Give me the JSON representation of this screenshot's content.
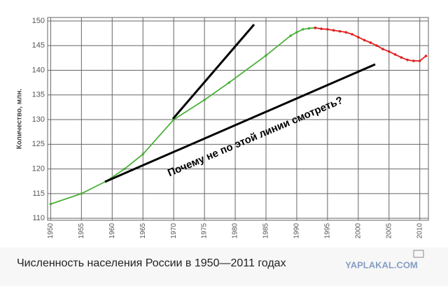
{
  "chart_data": {
    "type": "line",
    "y_label": "Количество, млн.",
    "annotation": "Почему не по этой линии смотреть?",
    "caption": "Численность населения России в 1950—2011 годах",
    "watermark": "YAPLAKAL.COM",
    "xlim": [
      1949.5,
      2011.4
    ],
    "ylim": [
      109.6,
      150.7
    ],
    "xticks": [
      1950,
      1955,
      1960,
      1965,
      1970,
      1975,
      1980,
      1985,
      1990,
      1995,
      2000,
      2005,
      2010
    ],
    "yticks": [
      110,
      115,
      120,
      125,
      130,
      135,
      140,
      145,
      150
    ],
    "grid": true,
    "series": [
      {
        "color": "#4caf3a",
        "x": [
          1950,
          1955,
          1959,
          1962,
          1965,
          1970,
          1975,
          1979,
          1985,
          1989,
          1990,
          1991,
          1992,
          1993
        ],
        "values": [
          112.9,
          115,
          117.5,
          120,
          123,
          130,
          134,
          137.5,
          143,
          147,
          147.7,
          148.3,
          148.5,
          148.6
        ]
      },
      {
        "color": "#e02020",
        "x": [
          1993,
          1994,
          1995,
          1996,
          1997,
          1998,
          1999,
          2000,
          2001,
          2002,
          2003,
          2004,
          2005,
          2006,
          2007,
          2008,
          2009,
          2010,
          2011
        ],
        "values": [
          148.6,
          148.4,
          148.3,
          148.1,
          147.9,
          147.7,
          147.3,
          146.7,
          146.1,
          145.6,
          145,
          144.3,
          143.8,
          143.2,
          142.6,
          142.1,
          141.9,
          141.9,
          142.9
        ]
      }
    ]
  }
}
